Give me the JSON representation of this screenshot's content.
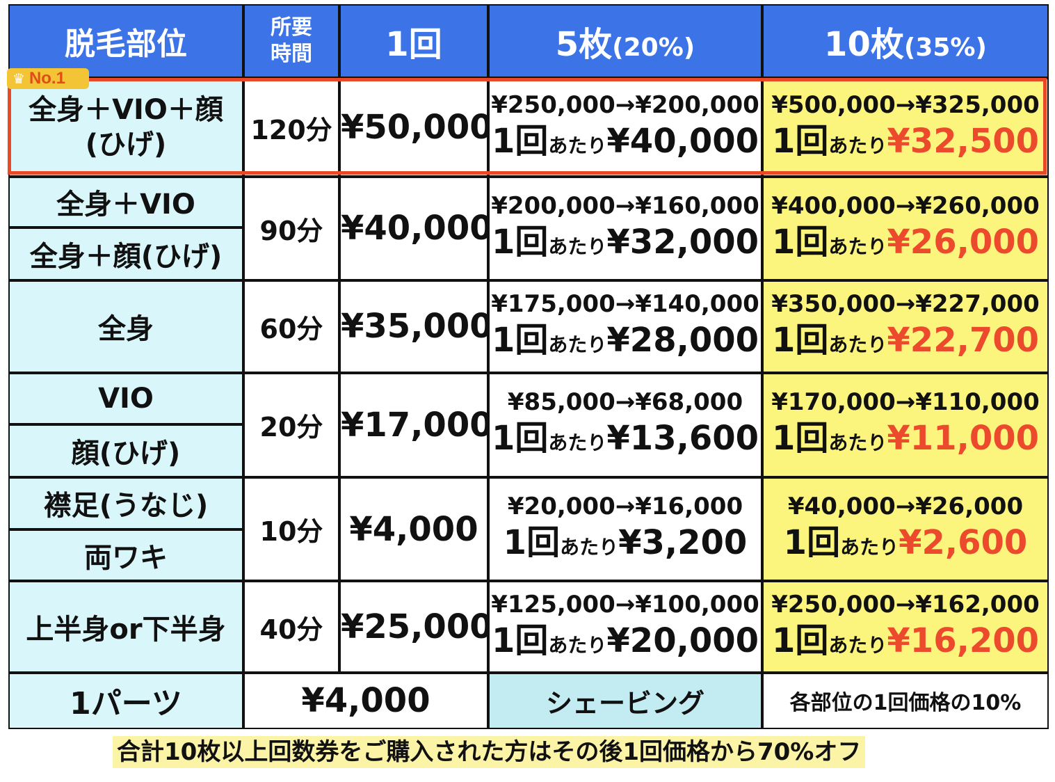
{
  "header": {
    "part": "脱毛部位",
    "time_l1": "所要",
    "time_l2": "時間",
    "once": "1回",
    "five_main": "5枚",
    "five_sub": "(20%)",
    "ten_main": "10枚",
    "ten_sub": "(35%)"
  },
  "badge": {
    "label": "No.1",
    "icon": "crown-icon"
  },
  "per_label": "あたり",
  "once_label": "1回",
  "rows": [
    {
      "parts": [
        "全身＋VIO＋顔",
        "(ひげ)"
      ],
      "time": "120分",
      "once": "¥50,000",
      "five_range": "¥250,000→¥200,000",
      "five_per": "¥40,000",
      "ten_range": "¥500,000→¥325,000",
      "ten_per": "¥32,500"
    },
    {
      "parts": [
        "全身＋VIO",
        "全身＋顔(ひげ)"
      ],
      "time": "90分",
      "once": "¥40,000",
      "five_range": "¥200,000→¥160,000",
      "five_per": "¥32,000",
      "ten_range": "¥400,000→¥260,000",
      "ten_per": "¥26,000"
    },
    {
      "parts": [
        "全身"
      ],
      "time": "60分",
      "once": "¥35,000",
      "five_range": "¥175,000→¥140,000",
      "five_per": "¥28,000",
      "ten_range": "¥350,000→¥227,000",
      "ten_per": "¥22,700"
    },
    {
      "parts": [
        "VIO",
        "顔(ひげ)"
      ],
      "time": "20分",
      "once": "¥17,000",
      "five_range": "¥85,000→¥68,000",
      "five_per": "¥13,600",
      "ten_range": "¥170,000→¥110,000",
      "ten_per": "¥11,000"
    },
    {
      "parts": [
        "襟足(うなじ)",
        "両ワキ"
      ],
      "time": "10分",
      "once": "¥4,000",
      "five_range": "¥20,000→¥16,000",
      "five_per": "¥3,200",
      "ten_range": "¥40,000→¥26,000",
      "ten_per": "¥2,600"
    },
    {
      "parts": [
        "上半身or下半身"
      ],
      "time": "40分",
      "once": "¥25,000",
      "five_range": "¥125,000→¥100,000",
      "five_per": "¥20,000",
      "ten_range": "¥250,000→¥162,000",
      "ten_per": "¥16,200"
    }
  ],
  "last_row": {
    "part": "1パーツ",
    "price": "¥4,000",
    "shaving": "シェービング",
    "shaving_price": "各部位の1回価格の10%"
  },
  "footnote": "合計10枚以上回数券をご購入された方はその後1回価格から70%オフ",
  "colors": {
    "header_bg": "#3c74e8",
    "part_bg": "#d9f7fb",
    "ten_bg": "#fcf57d",
    "accent_red": "#ec4a2c",
    "highlight_border": "#e84a28"
  }
}
